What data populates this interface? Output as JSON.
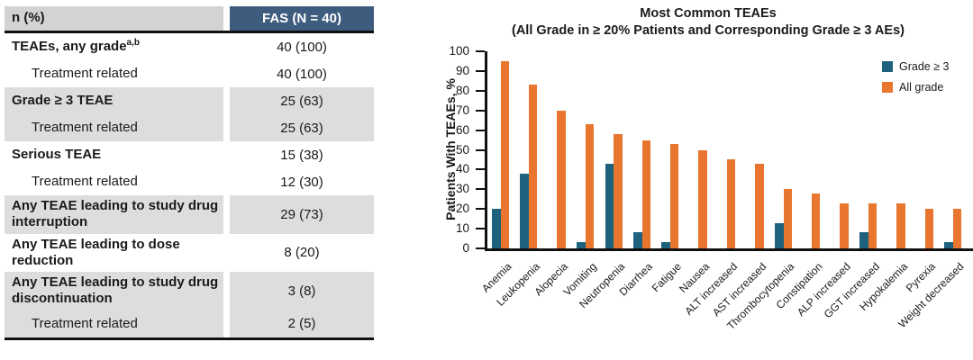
{
  "table": {
    "header": {
      "label_col": "n (%)",
      "value_col": "FAS (N = 40)"
    },
    "rows": [
      {
        "label": "TEAEs, any grade",
        "sup": "a,b",
        "value": "40 (100)",
        "bold": true,
        "indent": false,
        "shade": "white"
      },
      {
        "label": "Treatment related",
        "value": "40 (100)",
        "bold": false,
        "indent": true,
        "shade": "white"
      },
      {
        "label": "Grade ≥ 3 TEAE",
        "value": "25 (63)",
        "bold": true,
        "indent": false,
        "shade": "gray"
      },
      {
        "label": "Treatment related",
        "value": "25 (63)",
        "bold": false,
        "indent": true,
        "shade": "gray"
      },
      {
        "label": "Serious TEAE",
        "value": "15 (38)",
        "bold": true,
        "indent": false,
        "shade": "white"
      },
      {
        "label": "Treatment related",
        "value": "12 (30)",
        "bold": false,
        "indent": true,
        "shade": "white"
      },
      {
        "label": "Any TEAE leading to study drug interruption",
        "value": "29 (73)",
        "bold": true,
        "indent": false,
        "shade": "gray"
      },
      {
        "label": "Any TEAE leading to dose reduction",
        "value": "8 (20)",
        "bold": true,
        "indent": false,
        "shade": "white"
      },
      {
        "label": "Any TEAE leading to study drug discontinuation",
        "value": "3 (8)",
        "bold": true,
        "indent": false,
        "shade": "gray"
      },
      {
        "label": "Treatment related",
        "value": "2 (5)",
        "bold": false,
        "indent": true,
        "shade": "gray"
      }
    ]
  },
  "chart_data": {
    "type": "bar",
    "title": "Most Common TEAEs",
    "subtitle": "(All Grade in ≥ 20% Patients and Corresponding Grade ≥ 3 AEs)",
    "ylabel": "Patients With TEAEs, %",
    "xlabel": "",
    "ylim": [
      0,
      100
    ],
    "ytick_step": 10,
    "grid": false,
    "legend_position": "top-right",
    "categories": [
      "Anemia",
      "Leukopenia",
      "Alopecia",
      "Vomiting",
      "Neutropenia",
      "Diarrhea",
      "Fatigue",
      "Nausea",
      "ALT increased",
      "AST increased",
      "Thrombocytopenia",
      "Constipation",
      "ALP increased",
      "GGT increased",
      "Hypokalemia",
      "Pyrexia",
      "Weight decreased"
    ],
    "series": [
      {
        "name": "Grade ≥ 3",
        "color": "#1E627E",
        "values": [
          20,
          38,
          0,
          3,
          43,
          8,
          3,
          0,
          0,
          0,
          13,
          0,
          0,
          8,
          0,
          0,
          3
        ]
      },
      {
        "name": "All grade",
        "color": "#E8762F",
        "values": [
          95,
          83,
          70,
          63,
          58,
          55,
          53,
          50,
          45,
          43,
          30,
          28,
          23,
          23,
          23,
          20,
          20
        ]
      }
    ]
  },
  "colors": {
    "table_header_fill": "#3E5C7E",
    "table_header_text": "#FFFFFF",
    "table_header_gray": "#D1D4D2",
    "table_row_gray": "#DCDEDC",
    "grade3_blue": "#1E627E",
    "allgrade_orange": "#E8762F",
    "axis_black": "#111111"
  }
}
